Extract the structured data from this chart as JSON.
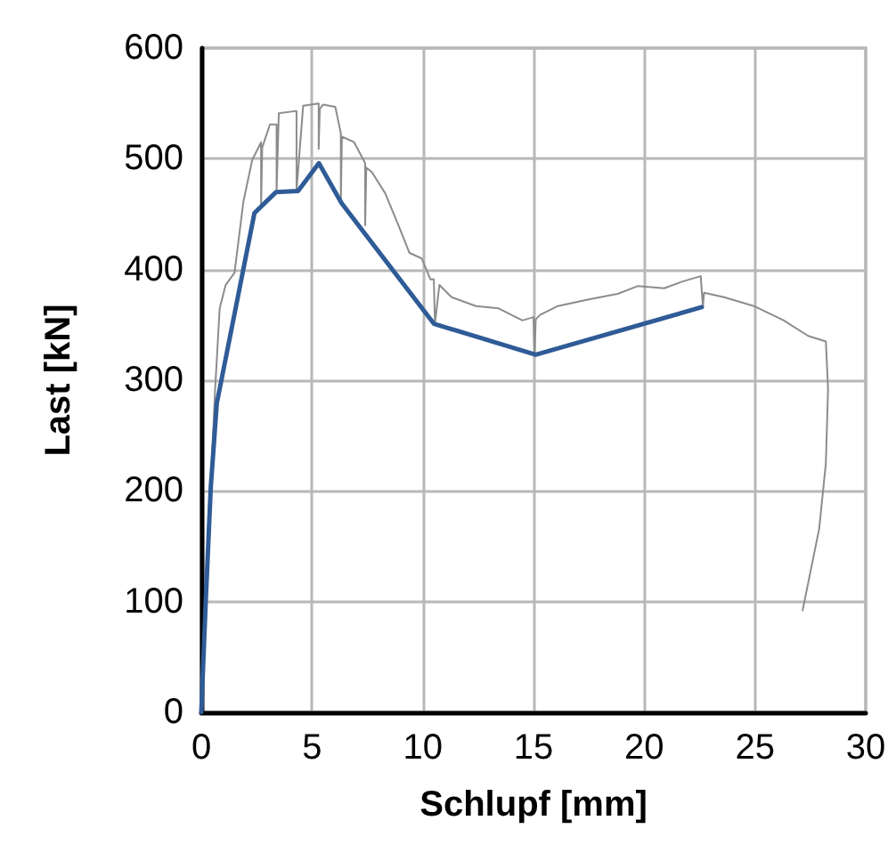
{
  "chart_data": {
    "type": "line",
    "xlabel": "Schlupf [mm]",
    "ylabel": "Last [kN]",
    "xlim": [
      0,
      30
    ],
    "xticks": [
      0,
      5,
      10,
      15,
      20,
      25,
      30
    ],
    "ylim": [
      0,
      600
    ],
    "yticks": [
      0,
      100,
      200,
      300,
      400,
      500,
      600
    ],
    "grid": true,
    "marker": "none",
    "line_style": "solid",
    "series": [
      {
        "color": "#8c8c8c",
        "x": [
          0,
          0.3,
          0.62,
          0.83,
          1.1,
          1.5,
          1.9,
          2.3,
          2.7,
          2.7,
          2.75,
          3.1,
          3.4,
          3.4,
          3.5,
          4.2,
          4.3,
          4.3,
          4.6,
          5.3,
          5.3,
          5.35,
          5.5,
          6.05,
          6.3,
          6.3,
          6.35,
          6.9,
          7.4,
          7.4,
          7.45,
          7.7,
          8.3,
          8.9,
          9.4,
          9.95,
          10.35,
          10.5,
          10.55,
          10.75,
          11.3,
          12.4,
          13.4,
          13.7,
          14.5,
          15.0,
          15.05,
          15.1,
          15.3,
          16.1,
          17.5,
          18.8,
          19.7,
          20.9,
          21.7,
          22.55,
          22.6,
          22.65,
          22.7,
          23.6,
          24.95,
          26.3,
          27.4,
          28.2,
          28.3,
          28.2,
          27.9,
          27.15
        ],
        "values": [
          0,
          150,
          290,
          365,
          386,
          397,
          461,
          499,
          515,
          455,
          510,
          531,
          531,
          470,
          541,
          543,
          543,
          471,
          548,
          550,
          509,
          545,
          549,
          547,
          523,
          460,
          520,
          515,
          496,
          440,
          492,
          488,
          469,
          440,
          415,
          410,
          391,
          391,
          351,
          386,
          375,
          367,
          365,
          362,
          354,
          357,
          323,
          355,
          359,
          367,
          373,
          378,
          385,
          383,
          389,
          394,
          394,
          366,
          379,
          375,
          367,
          354,
          340,
          335,
          292,
          225,
          166,
          92
        ]
      },
      {
        "color": "#2f5b97",
        "x": [
          0,
          0.2,
          0.43,
          0.7,
          2.4,
          3.38,
          4.37,
          5.31,
          6.33,
          10.5,
          15.1,
          22.6
        ],
        "values": [
          0,
          100,
          204,
          279,
          451,
          470,
          471,
          496,
          460,
          351,
          323,
          366
        ]
      }
    ]
  }
}
